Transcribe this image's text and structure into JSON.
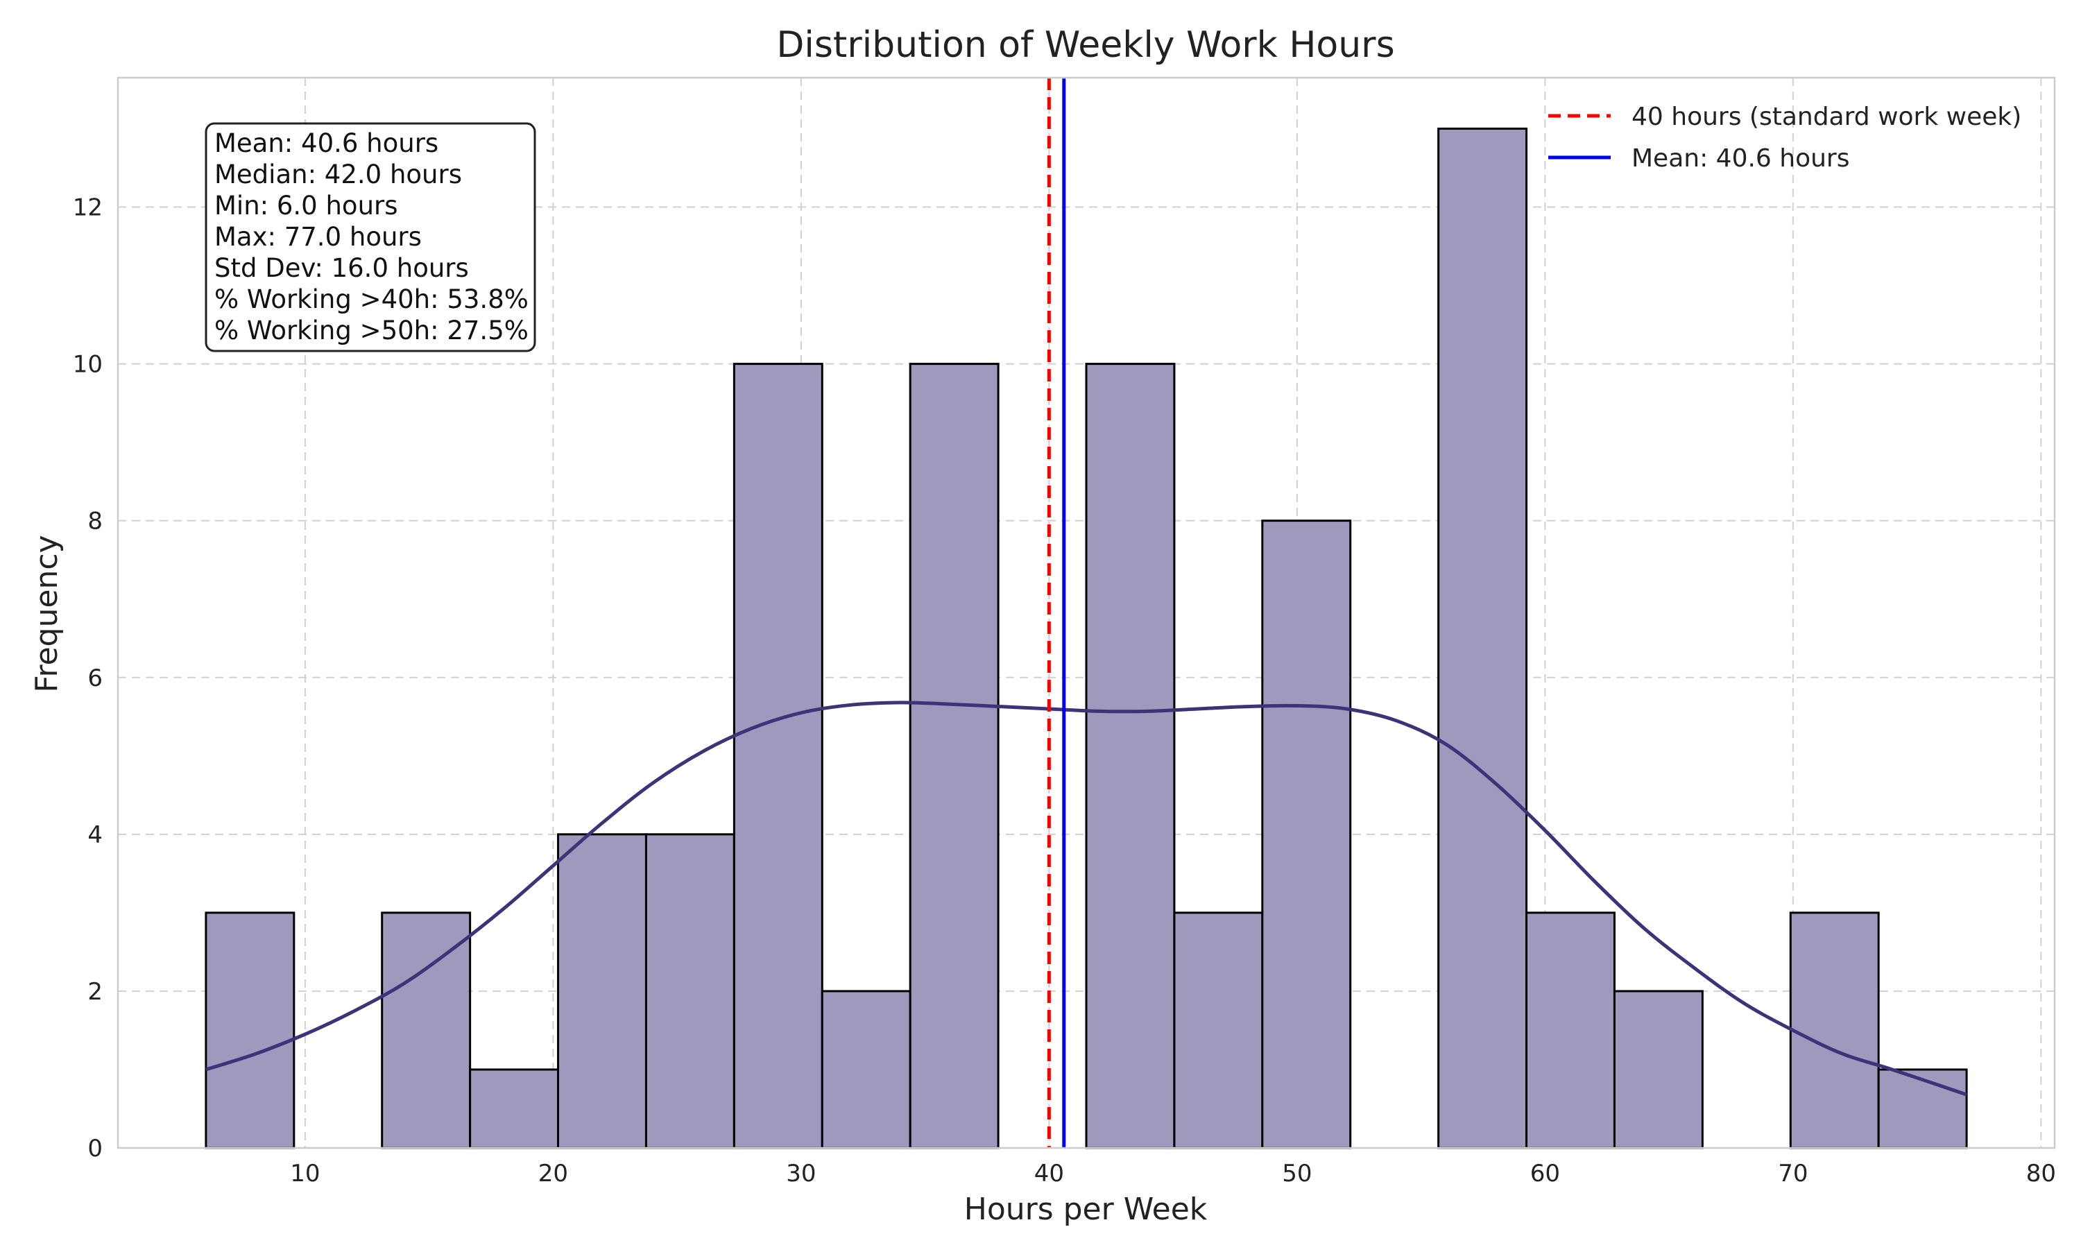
{
  "chart_data": {
    "type": "bar",
    "subtype": "histogram",
    "title": "Distribution of Weekly Work Hours",
    "xlabel": "Hours per Week",
    "ylabel": "Frequency",
    "xlim": [
      2.45,
      80.55
    ],
    "ylim": [
      0,
      13.65
    ],
    "xticks": [
      10,
      20,
      30,
      40,
      50,
      60,
      70,
      80
    ],
    "yticks": [
      0,
      2,
      4,
      6,
      8,
      10,
      12
    ],
    "grid": true,
    "grid_style": "dashed",
    "bin_edges": [
      6.0,
      9.55,
      13.1,
      16.65,
      20.2,
      23.75,
      27.3,
      30.85,
      34.4,
      37.95,
      41.5,
      45.05,
      48.6,
      52.15,
      55.7,
      59.25,
      62.8,
      66.35,
      69.9,
      73.45,
      77.0
    ],
    "counts": [
      3,
      0,
      3,
      1,
      4,
      4,
      10,
      2,
      10,
      0,
      10,
      3,
      8,
      0,
      13,
      3,
      2,
      0,
      3,
      1
    ],
    "bar_color": "#a198bd",
    "bar_edge_color": "#000000",
    "kde": {
      "color": "#3f3279",
      "x": [
        6,
        8,
        10,
        12,
        14,
        16,
        18,
        20,
        22,
        24,
        26,
        28,
        30,
        32,
        34,
        36,
        38,
        40,
        42,
        44,
        46,
        48,
        50,
        52,
        54,
        56,
        58,
        60,
        62,
        64,
        66,
        68,
        70,
        72,
        74,
        77
      ],
      "y": [
        1.0,
        1.2,
        1.45,
        1.75,
        2.1,
        2.55,
        3.05,
        3.6,
        4.15,
        4.65,
        5.05,
        5.35,
        5.55,
        5.65,
        5.68,
        5.66,
        5.63,
        5.6,
        5.57,
        5.57,
        5.6,
        5.63,
        5.64,
        5.6,
        5.45,
        5.15,
        4.65,
        4.05,
        3.4,
        2.8,
        2.3,
        1.85,
        1.5,
        1.2,
        1.0,
        0.68
      ]
    },
    "reference_lines": [
      {
        "name": "40 hours (standard work week)",
        "x": 40,
        "color": "#ff0000",
        "style": "dashed"
      },
      {
        "name": "Mean: 40.6 hours",
        "x": 40.6,
        "color": "#0000ee",
        "style": "solid"
      }
    ],
    "legend_placement": "top-right",
    "stats_box": [
      "Mean: 40.6 hours",
      "Median: 42.0 hours",
      "Min: 6.0 hours",
      "Max: 77.0 hours",
      "Std Dev: 16.0 hours",
      "% Working >40h: 53.8%",
      "% Working >50h: 27.5%"
    ]
  }
}
